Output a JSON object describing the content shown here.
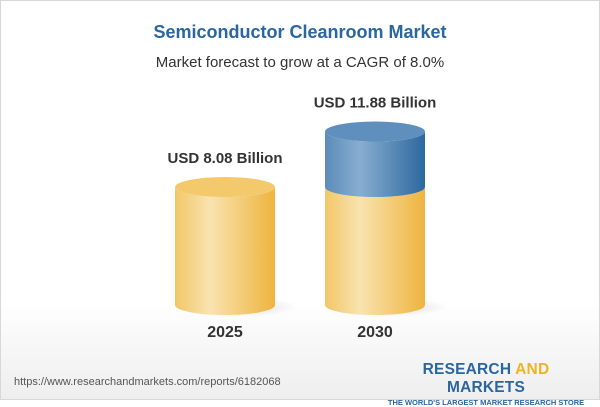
{
  "chart_data": {
    "type": "bar",
    "title": "Semiconductor Cleanroom Market",
    "subtitle": "Market forecast to grow at a CAGR of 8.0%",
    "categories": [
      "2025",
      "2030"
    ],
    "values": [
      8.08,
      11.88
    ],
    "data_labels": [
      "USD 8.08 Billion",
      "USD 11.88 Billion"
    ],
    "style": "3d-cylinder",
    "colors": {
      "base": "#f2c25a",
      "growth": "#4a80b0"
    },
    "grid": false
  },
  "footer": {
    "url": "https://www.researchandmarkets.com/reports/6182068",
    "logo_part1": "RESEARCH ",
    "logo_part2": "AND",
    "logo_part3": " MARKETS",
    "tagline": "THE WORLD'S LARGEST MARKET RESEARCH STORE"
  }
}
